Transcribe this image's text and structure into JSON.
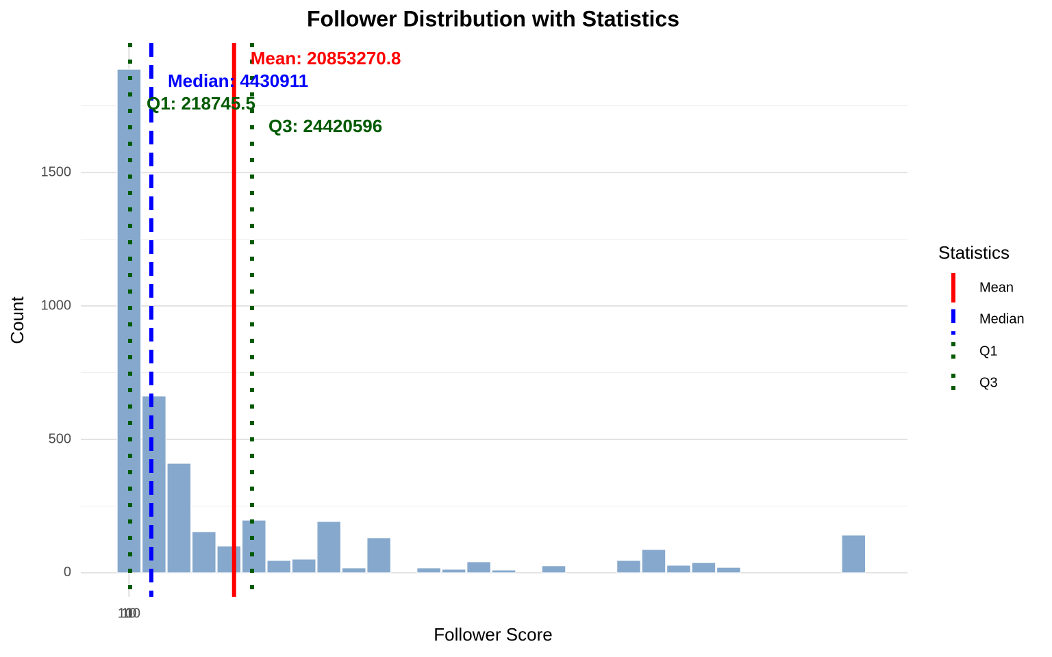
{
  "chart_data": {
    "type": "histogram",
    "title": "Follower Distribution with Statistics",
    "xlabel": "Follower Score",
    "ylabel": "Count",
    "bins": [
      -2480000,
      2480000,
      7440000,
      12400000,
      17360000,
      22320000,
      27280000,
      32240000,
      37200000,
      42160000,
      47120000,
      52080000,
      57040000,
      62000000,
      66960000,
      71920000,
      76880000,
      81840000,
      86800000,
      91760000,
      96720000,
      101680000,
      106640000,
      111600000,
      116560000,
      121520000,
      126480000,
      131440000,
      136400000,
      141360000,
      146320000
    ],
    "values": [
      1887,
      662,
      410,
      154,
      100,
      197,
      46,
      51,
      192,
      18,
      131,
      0,
      18,
      13,
      41,
      10,
      0,
      26,
      0,
      0,
      46,
      87,
      28,
      38,
      20,
      0,
      0,
      0,
      0,
      141
    ],
    "color": "#86a8cc",
    "xlim": [
      -9570000,
      154540000
    ],
    "ylim": [
      -90,
      1985
    ],
    "xticks": [
      1,
      10,
      100
    ],
    "yticks": [
      0,
      500,
      1000,
      1500
    ],
    "minor_yticks": [
      250,
      750,
      1250,
      1750
    ],
    "grid": true,
    "legend_title": "Statistics",
    "legend_position": "right",
    "stats": [
      {
        "name": "Mean",
        "value": 20853270.8,
        "value_label": "Mean: 20853270.8",
        "color": "#ff0000",
        "linestyle": "solid"
      },
      {
        "name": "Median",
        "value": 4430911,
        "value_label": "Median: 4430911",
        "color": "#0000ff",
        "linestyle": "dashed"
      },
      {
        "name": "Q1",
        "value": 218745.5,
        "value_label": "Q1: 218745.5",
        "color": "#005a00",
        "linestyle": "dotted"
      },
      {
        "name": "Q3",
        "value": 24420596,
        "value_label": "Q3: 24420596",
        "color": "#005a00",
        "linestyle": "dotted"
      }
    ]
  }
}
